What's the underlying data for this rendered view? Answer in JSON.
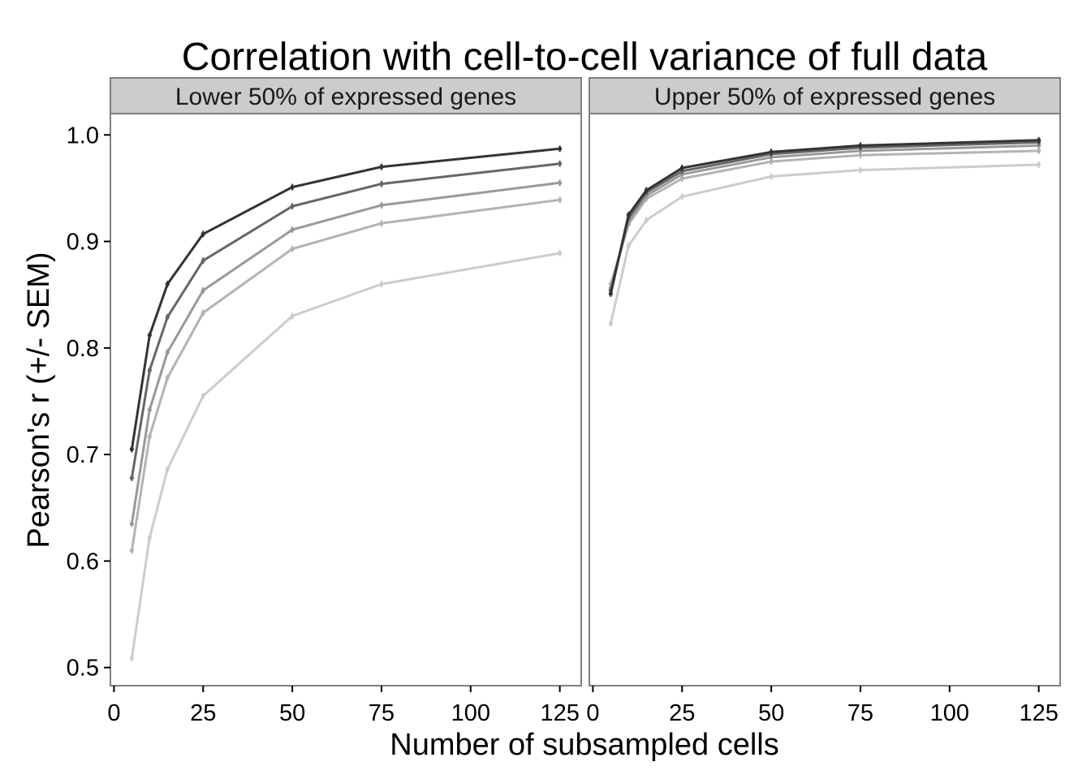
{
  "chart_data": {
    "type": "line",
    "title": "Correlation with cell-to-cell variance of full data",
    "xlabel": "Number of subsampled cells",
    "ylabel": "Pearson's r (+/- SEM)",
    "x": [
      5,
      10,
      15,
      25,
      50,
      75,
      125
    ],
    "xlim": [
      -1,
      131
    ],
    "ylim": [
      0.483,
      1.02
    ],
    "x_ticks": [
      "0",
      "25",
      "50",
      "75",
      "100",
      "125"
    ],
    "y_ticks": [
      "0.5",
      "0.6",
      "0.7",
      "0.8",
      "0.9",
      "1.0"
    ],
    "grid": false,
    "legend": "none",
    "series_colors": [
      "#333333",
      "#666666",
      "#999999",
      "#b3b3b3",
      "#cccccc"
    ],
    "panels": [
      {
        "strip_label": "Lower 50% of expressed genes",
        "series": [
          {
            "values": [
              0.705,
              0.812,
              0.86,
              0.907,
              0.951,
              0.97,
              0.987
            ]
          },
          {
            "values": [
              0.678,
              0.779,
              0.829,
              0.882,
              0.933,
              0.954,
              0.973
            ]
          },
          {
            "values": [
              0.635,
              0.742,
              0.796,
              0.854,
              0.911,
              0.934,
              0.955
            ]
          },
          {
            "values": [
              0.61,
              0.717,
              0.772,
              0.833,
              0.893,
              0.917,
              0.939
            ]
          },
          {
            "values": [
              0.509,
              0.622,
              0.686,
              0.755,
              0.83,
              0.86,
              0.889
            ]
          }
        ]
      },
      {
        "strip_label": "Upper 50% of expressed genes",
        "series": [
          {
            "values": [
              0.851,
              0.925,
              0.948,
              0.969,
              0.984,
              0.99,
              0.995
            ]
          },
          {
            "values": [
              0.854,
              0.922,
              0.946,
              0.966,
              0.982,
              0.988,
              0.993
            ]
          },
          {
            "values": [
              0.856,
              0.919,
              0.943,
              0.963,
              0.979,
              0.985,
              0.99
            ]
          },
          {
            "values": [
              0.86,
              0.916,
              0.94,
              0.959,
              0.975,
              0.981,
              0.985
            ]
          },
          {
            "values": [
              0.823,
              0.896,
              0.92,
              0.942,
              0.961,
              0.967,
              0.972
            ]
          }
        ]
      }
    ]
  }
}
